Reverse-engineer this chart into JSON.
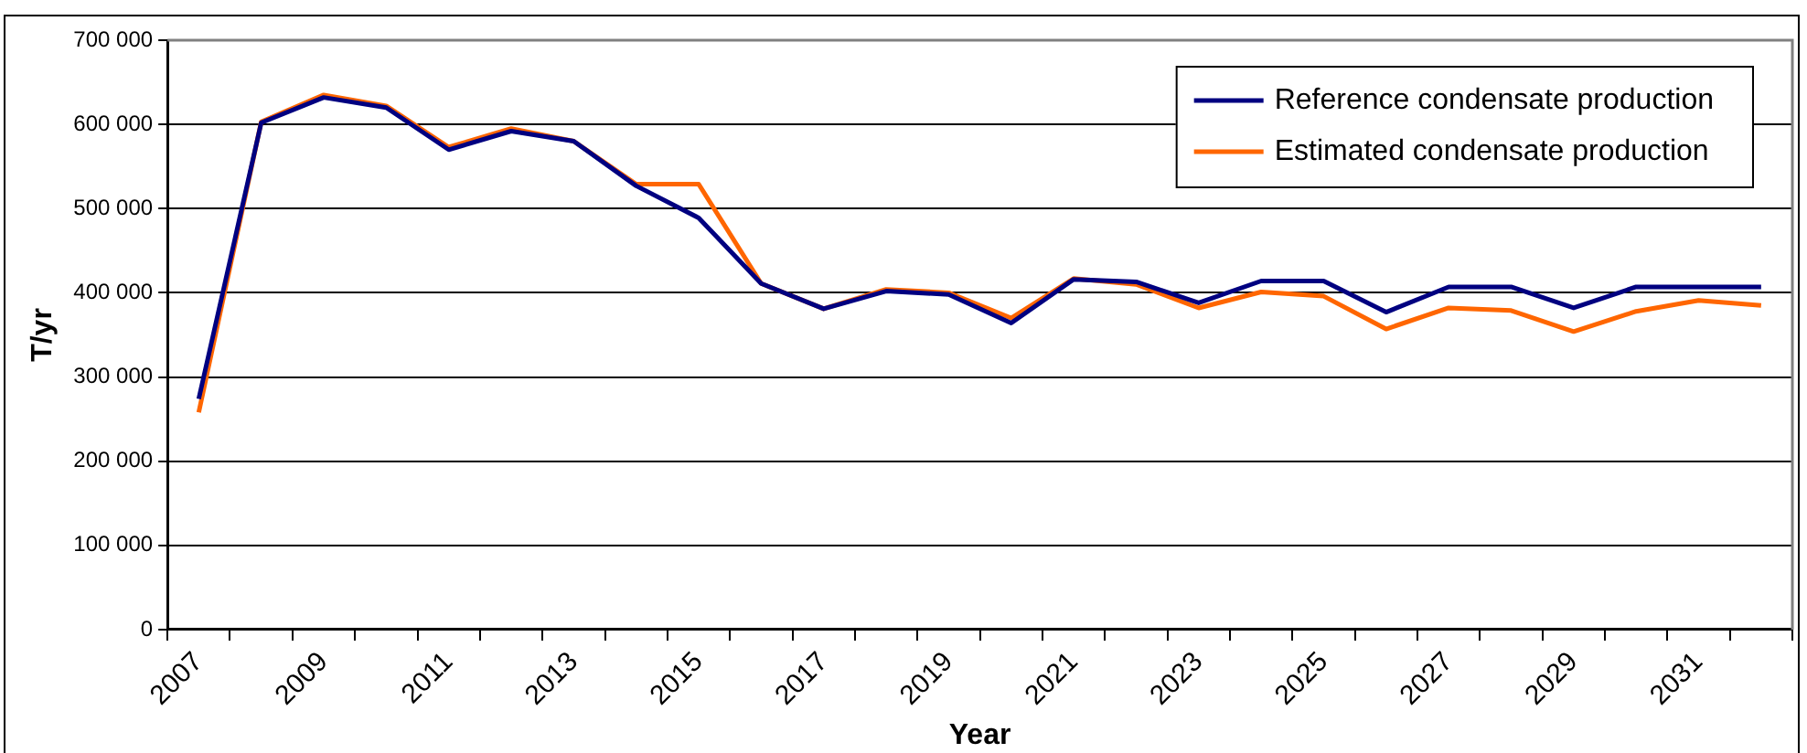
{
  "chart_data": {
    "type": "line",
    "xlabel": "Year",
    "ylabel": "T/yr",
    "categories": [
      "2007",
      null,
      "2009",
      null,
      "2011",
      null,
      "2013",
      null,
      "2015",
      null,
      "2017",
      null,
      "2019",
      null,
      "2021",
      null,
      "2023",
      null,
      "2025",
      null,
      "2027",
      null,
      "2029",
      null,
      "2031",
      null
    ],
    "series": [
      {
        "name": "Reference condensate production",
        "color": "#000080",
        "values": [
          274000,
          602000,
          632000,
          620000,
          570000,
          592000,
          580000,
          527000,
          489000,
          411000,
          381000,
          402000,
          398000,
          364000,
          416000,
          413000,
          388000,
          414000,
          414000,
          377000,
          407000,
          407000,
          382000,
          407000,
          407000,
          407000
        ]
      },
      {
        "name": "Estimated condensate production",
        "color": "#ff6600",
        "values": [
          258000,
          603000,
          635000,
          622000,
          573000,
          595000,
          580000,
          529000,
          529000,
          411000,
          381000,
          404000,
          400000,
          370000,
          417000,
          410000,
          382000,
          401000,
          396000,
          357000,
          382000,
          379000,
          354000,
          378000,
          391000,
          385000
        ]
      }
    ],
    "ylim": [
      0,
      700000
    ],
    "yticks": [
      {
        "value": 0,
        "label": "0"
      },
      {
        "value": 100000,
        "label": "100 000"
      },
      {
        "value": 200000,
        "label": "200 000"
      },
      {
        "value": 300000,
        "label": "300 000"
      },
      {
        "value": 400000,
        "label": "400 000"
      },
      {
        "value": 500000,
        "label": "500 000"
      },
      {
        "value": 600000,
        "label": "600 000"
      },
      {
        "value": 700000,
        "label": "700 000"
      }
    ],
    "grid": "y",
    "legend": "top right",
    "marker": "none",
    "line_style": "solid"
  }
}
